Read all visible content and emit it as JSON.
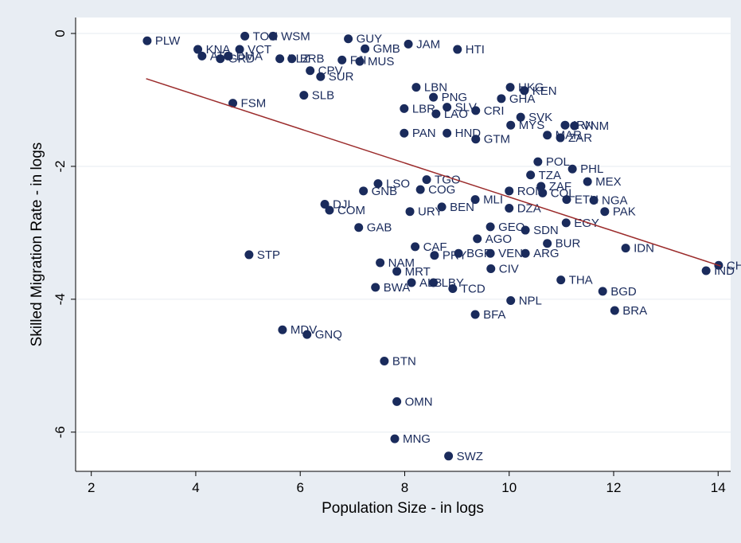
{
  "chart_data": {
    "type": "scatter",
    "x_label": "Population Size - in logs",
    "y_label": "Skilled Migration Rate - in logs",
    "xlim": [
      1.7,
      14.24
    ],
    "ylim": [
      -6.59,
      0.24
    ],
    "xticks": [
      2,
      4,
      6,
      8,
      10,
      12,
      14
    ],
    "yticks": [
      0,
      -2,
      -4,
      -6
    ],
    "grid": true,
    "series": [
      {
        "color": "#1a2b5c",
        "labels": [
          "PLW",
          "TON",
          "WSM",
          "GUY",
          "GMB",
          "JAM",
          "HTI",
          "KNA",
          "ATG",
          "GRD",
          "DMA",
          "VCT",
          "BLZ",
          "BRB",
          "CPV",
          "SUR",
          "FJI",
          "MUS",
          "SLB",
          "FSM",
          "LBN",
          "PNG",
          "LBR",
          "SLV",
          "LAO",
          "CRI",
          "GHA",
          "HKG",
          "KEN",
          "SVK",
          "MYS",
          "IRN",
          "VNM",
          "MAR",
          "ZAR",
          "PAN",
          "HND",
          "GTM",
          "POL",
          "PHL",
          "MEX",
          "TZA",
          "ZAF",
          "LSO",
          "GNB",
          "TGO",
          "COG",
          "ROM",
          "COL",
          "ETH",
          "NGA",
          "PAK",
          "EGY",
          "DJI",
          "COM",
          "GAB",
          "URY",
          "BEN",
          "MLI",
          "DZA",
          "SDN",
          "GEO",
          "AGO",
          "BUR",
          "IDN",
          "STP",
          "CAF",
          "BGR",
          "PRY",
          "VEN",
          "ARG",
          "NAM",
          "MRT",
          "CIV",
          "ALB",
          "BWA",
          "LBY",
          "TCD",
          "THA",
          "BGD",
          "NPL",
          "BRA",
          "BFA",
          "MDV",
          "GNQ",
          "BTN",
          "OMN",
          "MNG",
          "SWZ",
          "CHN",
          "IND"
        ],
        "x": [
          3.07,
          4.94,
          5.48,
          6.92,
          7.24,
          8.07,
          9.01,
          4.04,
          4.12,
          4.47,
          4.62,
          4.84,
          5.61,
          5.84,
          6.19,
          6.39,
          6.8,
          7.14,
          6.07,
          4.71,
          8.22,
          8.55,
          7.99,
          8.81,
          8.6,
          9.36,
          9.85,
          10.02,
          10.29,
          10.22,
          10.03,
          11.07,
          11.25,
          10.73,
          10.98,
          7.99,
          8.81,
          9.36,
          10.55,
          11.21,
          11.5,
          10.41,
          10.61,
          7.49,
          7.21,
          8.42,
          8.3,
          10.0,
          10.64,
          11.1,
          11.62,
          11.83,
          11.09,
          6.47,
          6.56,
          7.12,
          8.1,
          8.71,
          9.35,
          10.0,
          10.31,
          9.64,
          9.39,
          10.73,
          12.23,
          5.02,
          8.2,
          9.03,
          8.57,
          9.64,
          10.31,
          7.53,
          7.85,
          9.65,
          8.13,
          7.44,
          8.55,
          8.92,
          10.99,
          11.79,
          10.03,
          12.02,
          9.35,
          5.66,
          6.13,
          7.61,
          7.85,
          7.81,
          8.84,
          14.01,
          13.77
        ],
        "values": [
          -0.11,
          -0.04,
          -0.04,
          -0.08,
          -0.23,
          -0.16,
          -0.24,
          -0.24,
          -0.34,
          -0.38,
          -0.34,
          -0.24,
          -0.38,
          -0.38,
          -0.56,
          -0.65,
          -0.4,
          -0.42,
          -0.93,
          -1.05,
          -0.81,
          -0.96,
          -1.13,
          -1.11,
          -1.21,
          -1.16,
          -0.98,
          -0.81,
          -0.86,
          -1.26,
          -1.38,
          -1.38,
          -1.39,
          -1.53,
          -1.57,
          -1.5,
          -1.5,
          -1.59,
          -1.93,
          -2.04,
          -2.23,
          -2.13,
          -2.3,
          -2.26,
          -2.37,
          -2.2,
          -2.35,
          -2.37,
          -2.4,
          -2.5,
          -2.51,
          -2.68,
          -2.85,
          -2.57,
          -2.66,
          -2.92,
          -2.68,
          -2.61,
          -2.5,
          -2.63,
          -2.96,
          -2.91,
          -3.09,
          -3.16,
          -3.23,
          -3.33,
          -3.21,
          -3.31,
          -3.34,
          -3.31,
          -3.31,
          -3.45,
          -3.58,
          -3.54,
          -3.75,
          -3.82,
          -3.75,
          -3.84,
          -3.71,
          -3.88,
          -4.02,
          -4.17,
          -4.23,
          -4.46,
          -4.53,
          -4.93,
          -5.54,
          -6.1,
          -6.36,
          -3.49,
          -3.57
        ]
      }
    ],
    "fit_line": {
      "color": "#9b2b2b",
      "x": [
        3.05,
        14.05
      ],
      "values": [
        -0.68,
        -3.5
      ]
    }
  }
}
